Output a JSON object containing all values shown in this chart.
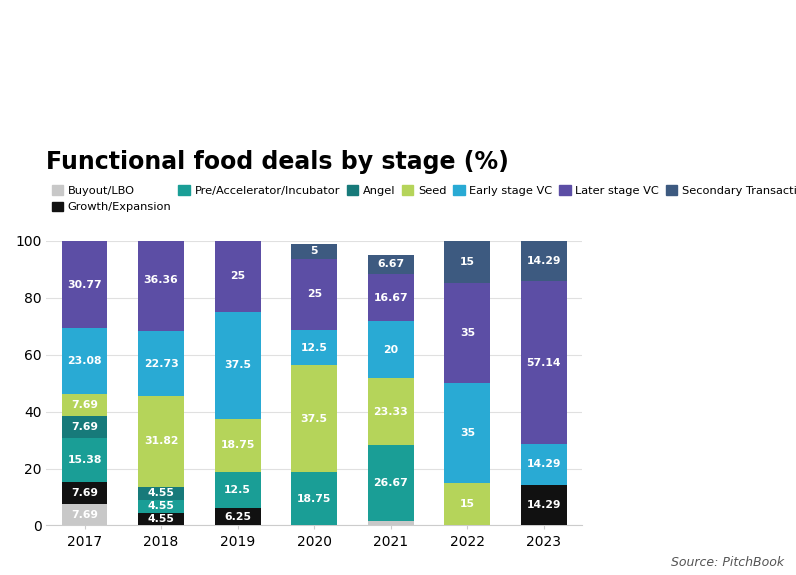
{
  "title": "Functional food deals by stage (%)",
  "source": "Source: PitchBook",
  "years": [
    2017,
    2018,
    2019,
    2020,
    2021,
    2022,
    2023
  ],
  "categories": [
    "Buyout/LBO",
    "Growth/Expansion",
    "Pre/Accelerator/Incubator",
    "Angel",
    "Seed",
    "Early stage VC",
    "Later stage VC",
    "Secondary Transaction - Private"
  ],
  "colors": [
    "#c8c8c8",
    "#111111",
    "#1a9e96",
    "#177a7a",
    "#b5d45a",
    "#29aad4",
    "#5c4ea5",
    "#3d5a80"
  ],
  "data": {
    "Buyout/LBO": [
      7.69,
      0,
      0,
      0,
      1.67,
      0,
      0
    ],
    "Growth/Expansion": [
      7.69,
      4.55,
      6.25,
      0,
      0,
      0,
      14.29
    ],
    "Pre/Accelerator/Incubator": [
      15.38,
      4.55,
      12.5,
      18.75,
      26.67,
      0,
      0
    ],
    "Angel": [
      7.69,
      4.55,
      0,
      0,
      0,
      0,
      0
    ],
    "Seed": [
      7.69,
      31.82,
      18.75,
      37.5,
      23.33,
      15,
      0
    ],
    "Early stage VC": [
      23.08,
      22.73,
      37.5,
      12.5,
      20,
      35,
      14.29
    ],
    "Later stage VC": [
      30.77,
      36.36,
      25,
      25,
      16.67,
      35,
      57.14
    ],
    "Secondary Transaction - Private": [
      0,
      0,
      0,
      5,
      6.67,
      15,
      14.29
    ]
  },
  "ylim": [
    0,
    100
  ],
  "background_color": "#ffffff",
  "grid_color": "#e0e0e0",
  "title_fontsize": 17,
  "tick_fontsize": 10,
  "bar_width": 0.6
}
